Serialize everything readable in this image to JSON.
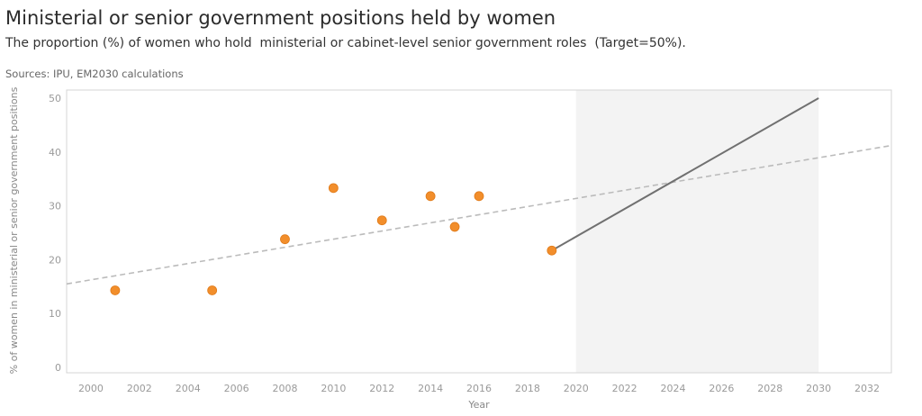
{
  "header": {
    "title": "Ministerial or senior government positions held by women",
    "subtitle": "The proportion (%) of women who hold  ministerial or cabinet-level senior government roles  (Target=50%).",
    "sources": "Sources: IPU, EM2030 calculations"
  },
  "chart_data": {
    "type": "scatter",
    "xlabel": "Year",
    "ylabel": "% of women in ministerial or senior government positions",
    "xlim": [
      1999,
      2033
    ],
    "ylim": [
      -1,
      51.5
    ],
    "xticks": [
      2000,
      2002,
      2004,
      2006,
      2008,
      2010,
      2012,
      2014,
      2016,
      2018,
      2020,
      2022,
      2024,
      2026,
      2028,
      2030,
      2032
    ],
    "yticks": [
      0,
      10,
      20,
      30,
      40,
      50
    ],
    "grid": false,
    "projection_band": {
      "x": [
        2020,
        2030
      ]
    },
    "points": {
      "color": "#f28e2b",
      "x": [
        2001,
        2005,
        2008,
        2010,
        2012,
        2014,
        2015,
        2016,
        2019
      ],
      "y": [
        14.3,
        14.3,
        23.8,
        33.3,
        27.3,
        31.8,
        26.1,
        31.8,
        21.7
      ]
    },
    "trend_line": {
      "style": "dashed",
      "color": "#bbbbbb",
      "x": [
        1999,
        2033
      ],
      "y": [
        15.5,
        41.2
      ]
    },
    "target_line": {
      "style": "solid",
      "color": "#707070",
      "x": [
        2019,
        2030
      ],
      "y": [
        21.7,
        50
      ]
    }
  }
}
